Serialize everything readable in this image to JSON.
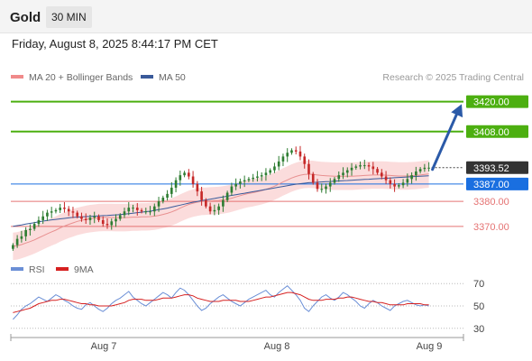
{
  "header": {
    "instrument": "Gold",
    "timeframe": "30 MIN",
    "timestamp": "Friday, August 8, 2025 8:44:17 PM CET"
  },
  "legend": {
    "bollinger_label": "MA 20 + Bollinger Bands",
    "ma50_label": "MA 50",
    "source": "Research © 2025 Trading Central",
    "rsi_label": "RSI",
    "rsi_ma_label": "9MA"
  },
  "colors": {
    "bull": "#2e7d32",
    "bear": "#c62828",
    "target": "#4caf10",
    "pivot": "#1a6fe0",
    "support": "#e57373",
    "bands": "#f9d0d0",
    "ma20": "#e89090",
    "ma50": "#3a5a9a",
    "arrow": "#2b5aa8",
    "current": "#333333",
    "rsi": "#6b8fd6",
    "rsi_ma": "#d62020"
  },
  "chart_data": [
    {
      "type": "candlestick",
      "yrange": [
        3358,
        3426
      ],
      "x_ticks": [
        "Aug 7",
        "Aug 8",
        "Aug 9"
      ],
      "levels": [
        {
          "label": "3420.00",
          "value": 3420,
          "kind": "target"
        },
        {
          "label": "3408.00",
          "value": 3408,
          "kind": "target"
        },
        {
          "label": "3393.52",
          "value": 3393.52,
          "kind": "current"
        },
        {
          "label": "3387.00",
          "value": 3387,
          "kind": "pivot"
        },
        {
          "label": "3380.00",
          "value": 3380,
          "kind": "support"
        },
        {
          "label": "3370.00",
          "value": 3370,
          "kind": "support"
        }
      ],
      "projection": {
        "from": 3392.8,
        "to": 3419
      },
      "series": [
        {
          "name": "Price",
          "close": [
            3362.5,
            3365.0,
            3366.0,
            3368.5,
            3369.0,
            3371.0,
            3372.5,
            3374.0,
            3375.5,
            3376.0,
            3376.5,
            3377.5,
            3377.0,
            3376.0,
            3375.5,
            3374.0,
            3373.0,
            3372.5,
            3373.5,
            3374.0,
            3372.5,
            3371.0,
            3370.5,
            3372.0,
            3373.0,
            3374.5,
            3376.0,
            3377.5,
            3377.5,
            3376.5,
            3376.0,
            3376.0,
            3376.0,
            3378.0,
            3380.0,
            3381.5,
            3383.0,
            3385.5,
            3388.5,
            3390.5,
            3391.5,
            3390.0,
            3387.0,
            3384.0,
            3380.5,
            3378.0,
            3376.0,
            3376.5,
            3378.0,
            3380.5,
            3383.5,
            3386.0,
            3387.0,
            3388.0,
            3388.5,
            3389.0,
            3389.5,
            3390.0,
            3390.5,
            3391.5,
            3392.5,
            3394.0,
            3396.0,
            3398.0,
            3399.5,
            3400.5,
            3400.0,
            3398.0,
            3395.0,
            3391.0,
            3387.5,
            3385.0,
            3385.0,
            3386.0,
            3387.5,
            3389.0,
            3390.5,
            3391.5,
            3392.5,
            3393.5,
            3394.0,
            3394.5,
            3394.5,
            3394.0,
            3393.0,
            3391.5,
            3390.0,
            3388.5,
            3387.0,
            3386.0,
            3386.5,
            3387.5,
            3389.0,
            3390.5,
            3392.0,
            3393.0,
            3393.5,
            3393.52
          ]
        },
        {
          "name": "MA 20",
          "values": [
            3362.0,
            3362.2,
            3362.7,
            3363.3,
            3363.9,
            3364.6,
            3365.4,
            3366.2,
            3367.0,
            3367.8,
            3368.5,
            3369.4,
            3370.1,
            3370.8,
            3371.4,
            3372.0,
            3372.4,
            3372.8,
            3373.1,
            3373.3,
            3373.5,
            3373.6,
            3373.6,
            3373.6,
            3373.5,
            3373.5,
            3373.5,
            3373.6,
            3373.7,
            3373.7,
            3373.8,
            3373.8,
            3373.9,
            3374.1,
            3374.4,
            3374.8,
            3375.2,
            3375.8,
            3376.5,
            3377.3,
            3378.1,
            3378.8,
            3379.3,
            3379.7,
            3380.0,
            3380.1,
            3380.2,
            3380.3,
            3380.4,
            3380.6,
            3380.9,
            3381.3,
            3381.8,
            3382.3,
            3382.8,
            3383.2,
            3383.5,
            3383.9,
            3384.3,
            3384.8,
            3385.4,
            3386.1,
            3386.9,
            3387.8,
            3388.6,
            3389.4,
            3390.0,
            3390.5,
            3390.8,
            3390.9,
            3390.8,
            3390.6,
            3390.4,
            3390.3,
            3390.2,
            3390.1,
            3390.1,
            3390.1,
            3390.1,
            3390.1,
            3390.2,
            3390.3,
            3390.4,
            3390.5,
            3390.6,
            3390.6,
            3390.6,
            3390.5,
            3390.4,
            3390.3,
            3390.2,
            3390.2,
            3390.2,
            3390.3,
            3390.4,
            3390.6,
            3390.8,
            3391.0
          ]
        },
        {
          "name": "MA 50",
          "values": [
            3370.0,
            3370.3,
            3370.6,
            3370.9,
            3371.2,
            3371.5,
            3371.8,
            3372.1,
            3372.4,
            3372.6,
            3372.8,
            3373.0,
            3373.2,
            3373.4,
            3373.6,
            3373.7,
            3373.8,
            3373.9,
            3374.0,
            3374.1,
            3374.2,
            3374.3,
            3374.4,
            3374.5,
            3374.6,
            3374.7,
            3374.9,
            3375.1,
            3375.3,
            3375.5,
            3375.7,
            3375.9,
            3376.1,
            3376.4,
            3376.7,
            3377.0,
            3377.3,
            3377.7,
            3378.1,
            3378.5,
            3378.9,
            3379.3,
            3379.7,
            3380.0,
            3380.3,
            3380.6,
            3380.9,
            3381.2,
            3381.5,
            3381.8,
            3382.1,
            3382.4,
            3382.7,
            3383.0,
            3383.3,
            3383.6,
            3383.9,
            3384.2,
            3384.5,
            3384.8,
            3385.1,
            3385.4,
            3385.7,
            3386.0,
            3386.3,
            3386.6,
            3386.9,
            3387.1,
            3387.3,
            3387.5,
            3387.6,
            3387.7,
            3387.8,
            3387.9,
            3388.0,
            3388.1,
            3388.2,
            3388.3,
            3388.4,
            3388.5,
            3388.6,
            3388.7,
            3388.8,
            3388.9,
            3389.0,
            3389.1,
            3389.2,
            3389.3,
            3389.4,
            3389.5,
            3389.6,
            3389.7,
            3389.8,
            3389.9,
            3390.0,
            3390.1,
            3390.2,
            3390.3
          ]
        }
      ]
    },
    {
      "type": "line",
      "yrange": [
        25,
        75
      ],
      "y_ticks": [
        70,
        50,
        30
      ],
      "series": [
        {
          "name": "RSI",
          "values": [
            38,
            42,
            47,
            50,
            52,
            55,
            58,
            56,
            54,
            57,
            60,
            58,
            55,
            53,
            50,
            48,
            47,
            51,
            53,
            50,
            47,
            45,
            48,
            52,
            55,
            57,
            60,
            63,
            58,
            55,
            52,
            50,
            53,
            56,
            59,
            62,
            60,
            57,
            62,
            66,
            64,
            60,
            55,
            50,
            46,
            48,
            52,
            55,
            58,
            60,
            57,
            54,
            52,
            50,
            53,
            56,
            58,
            60,
            62,
            64,
            60,
            58,
            62,
            65,
            68,
            64,
            60,
            55,
            48,
            45,
            50,
            54,
            58,
            60,
            57,
            55,
            58,
            62,
            60,
            57,
            54,
            50,
            48,
            52,
            55,
            53,
            50,
            48,
            46,
            50,
            52,
            54,
            55,
            53,
            51,
            50,
            51,
            50
          ]
        },
        {
          "name": "9MA",
          "values": [
            44,
            45,
            46,
            47,
            48,
            50,
            52,
            53,
            54,
            55,
            55,
            56,
            56,
            55,
            54,
            53,
            52,
            52,
            51,
            51,
            50,
            50,
            50,
            50,
            51,
            52,
            53,
            55,
            56,
            56,
            56,
            55,
            55,
            55,
            56,
            57,
            57,
            57,
            58,
            59,
            60,
            60,
            59,
            57,
            56,
            55,
            54,
            54,
            54,
            55,
            55,
            55,
            55,
            54,
            54,
            54,
            55,
            56,
            57,
            58,
            58,
            59,
            60,
            61,
            62,
            62,
            61,
            60,
            58,
            56,
            55,
            55,
            55,
            56,
            56,
            56,
            57,
            57,
            58,
            58,
            57,
            56,
            55,
            54,
            54,
            53,
            53,
            52,
            51,
            51,
            51,
            51,
            52,
            52,
            52,
            52,
            51,
            51
          ]
        }
      ]
    }
  ]
}
